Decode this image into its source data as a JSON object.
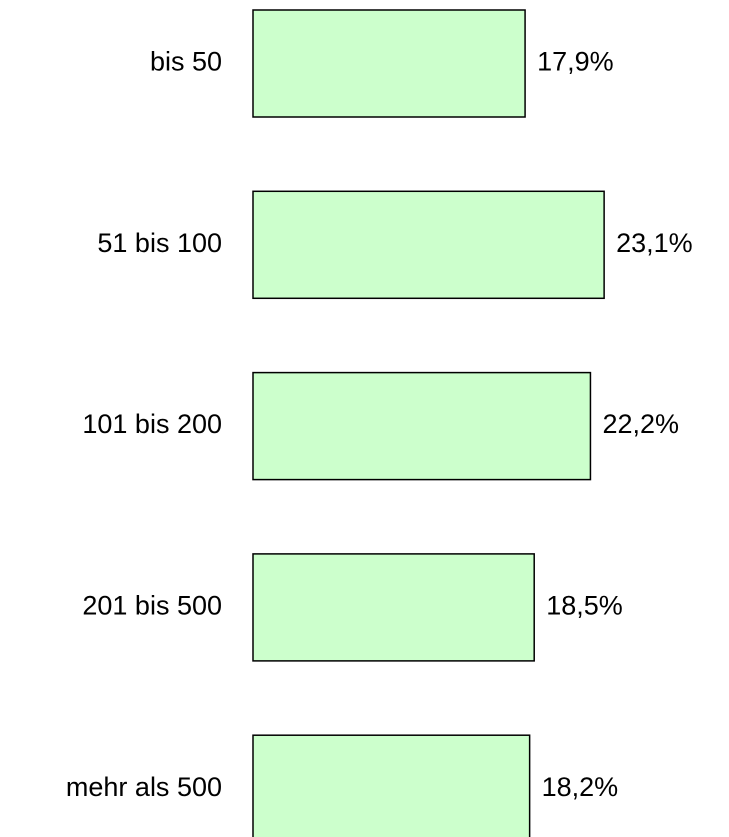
{
  "chart_data": {
    "type": "bar",
    "orientation": "horizontal",
    "categories": [
      "bis 50",
      "51 bis 100",
      "101 bis 200",
      "201 bis 500",
      "mehr als 500"
    ],
    "values": [
      17.9,
      23.1,
      22.2,
      18.5,
      18.2
    ],
    "value_labels": [
      "17,9%",
      "23,1%",
      "22,2%",
      "18,5%",
      "18,2%"
    ],
    "color": "#ccffcc",
    "grid": false
  }
}
